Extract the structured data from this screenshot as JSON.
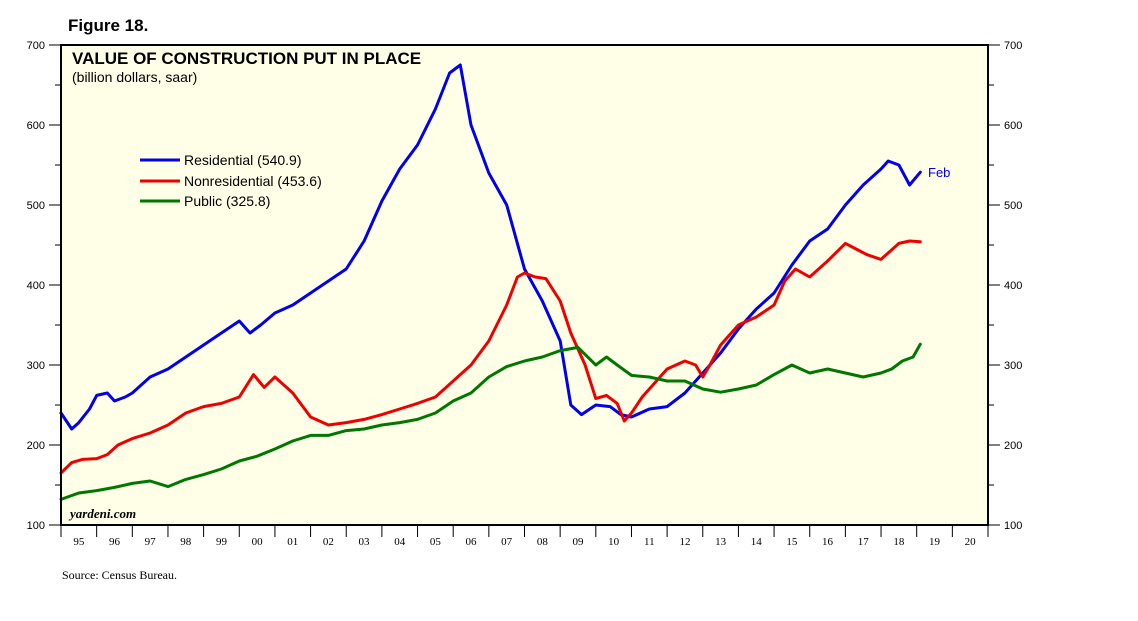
{
  "figure_label": "Figure 18.",
  "source": "Source: Census Bureau.",
  "brand": "yardeni.com",
  "chart_data": {
    "type": "line",
    "title": "VALUE OF CONSTRUCTION PUT IN PLACE",
    "subtitle": "(billion dollars, saar)",
    "ylim": [
      100,
      700
    ],
    "yticks": [
      100,
      200,
      300,
      400,
      500,
      600,
      700
    ],
    "ytick_labels": [
      "100",
      "200",
      "300",
      "400",
      "500",
      "600",
      "700"
    ],
    "xlim": [
      1995,
      2021
    ],
    "xtick_labels": [
      "95",
      "96",
      "97",
      "98",
      "99",
      "00",
      "01",
      "02",
      "03",
      "04",
      "05",
      "06",
      "07",
      "08",
      "09",
      "10",
      "11",
      "12",
      "13",
      "14",
      "15",
      "16",
      "17",
      "18",
      "19",
      "20"
    ],
    "latest_label": "Feb",
    "latest_color": "#0000ee",
    "series": [
      {
        "name": "Residential",
        "legend": "Residential (540.9)",
        "color": "#0000ee",
        "x": [
          1995.0,
          1995.3,
          1995.5,
          1995.8,
          1996.0,
          1996.3,
          1996.5,
          1996.8,
          1997.0,
          1997.5,
          1998.0,
          1998.5,
          1999.0,
          1999.5,
          2000.0,
          2000.3,
          2000.6,
          2001.0,
          2001.5,
          2002.0,
          2002.5,
          2003.0,
          2003.5,
          2004.0,
          2004.5,
          2005.0,
          2005.5,
          2005.9,
          2006.2,
          2006.5,
          2007.0,
          2007.5,
          2008.0,
          2008.5,
          2009.0,
          2009.3,
          2009.6,
          2010.0,
          2010.4,
          2010.7,
          2011.0,
          2011.5,
          2012.0,
          2012.5,
          2013.0,
          2013.5,
          2014.0,
          2014.5,
          2015.0,
          2015.5,
          2016.0,
          2016.5,
          2017.0,
          2017.5,
          2018.0,
          2018.2,
          2018.5,
          2018.8,
          2019.1
        ],
        "y": [
          240,
          220,
          228,
          245,
          262,
          265,
          255,
          260,
          265,
          285,
          295,
          310,
          325,
          340,
          355,
          340,
          350,
          365,
          375,
          390,
          405,
          420,
          455,
          505,
          545,
          575,
          620,
          665,
          675,
          600,
          540,
          500,
          420,
          380,
          330,
          250,
          238,
          250,
          248,
          238,
          235,
          245,
          248,
          265,
          290,
          315,
          345,
          370,
          390,
          425,
          455,
          470,
          500,
          525,
          545,
          555,
          550,
          525,
          541
        ]
      },
      {
        "name": "Nonresidential",
        "legend": "Nonresidential (453.6)",
        "color": "#ee0000",
        "x": [
          1995.0,
          1995.3,
          1995.6,
          1996.0,
          1996.3,
          1996.6,
          1997.0,
          1997.5,
          1998.0,
          1998.5,
          1999.0,
          1999.5,
          2000.0,
          2000.4,
          2000.7,
          2001.0,
          2001.5,
          2002.0,
          2002.5,
          2003.0,
          2003.5,
          2004.0,
          2004.5,
          2005.0,
          2005.5,
          2006.0,
          2006.5,
          2007.0,
          2007.5,
          2007.8,
          2008.0,
          2008.3,
          2008.6,
          2009.0,
          2009.3,
          2009.7,
          2010.0,
          2010.3,
          2010.6,
          2010.8,
          2011.0,
          2011.3,
          2011.6,
          2012.0,
          2012.5,
          2012.8,
          2013.0,
          2013.2,
          2013.5,
          2014.0,
          2014.5,
          2015.0,
          2015.3,
          2015.6,
          2016.0,
          2016.5,
          2017.0,
          2017.3,
          2017.6,
          2018.0,
          2018.5,
          2018.8,
          2019.1
        ],
        "y": [
          165,
          178,
          182,
          183,
          188,
          200,
          208,
          215,
          225,
          240,
          248,
          252,
          260,
          288,
          272,
          285,
          265,
          235,
          225,
          228,
          232,
          238,
          245,
          252,
          260,
          280,
          300,
          330,
          375,
          410,
          415,
          410,
          408,
          380,
          340,
          300,
          258,
          262,
          252,
          230,
          240,
          260,
          275,
          295,
          305,
          300,
          285,
          300,
          325,
          350,
          360,
          375,
          405,
          420,
          410,
          430,
          452,
          445,
          438,
          432,
          452,
          455,
          454
        ]
      },
      {
        "name": "Public",
        "legend": "Public (325.8)",
        "color": "#007700",
        "x": [
          1995.0,
          1995.5,
          1996.0,
          1996.5,
          1997.0,
          1997.5,
          1998.0,
          1998.5,
          1999.0,
          1999.5,
          2000.0,
          2000.5,
          2001.0,
          2001.5,
          2002.0,
          2002.5,
          2003.0,
          2003.5,
          2004.0,
          2004.5,
          2005.0,
          2005.5,
          2006.0,
          2006.5,
          2007.0,
          2007.5,
          2008.0,
          2008.5,
          2009.0,
          2009.5,
          2010.0,
          2010.3,
          2010.6,
          2011.0,
          2011.5,
          2012.0,
          2012.5,
          2013.0,
          2013.5,
          2014.0,
          2014.5,
          2015.0,
          2015.5,
          2016.0,
          2016.5,
          2017.0,
          2017.5,
          2018.0,
          2018.3,
          2018.6,
          2018.9,
          2019.1
        ],
        "y": [
          132,
          140,
          143,
          147,
          152,
          155,
          148,
          157,
          163,
          170,
          180,
          186,
          195,
          205,
          212,
          212,
          218,
          220,
          225,
          228,
          232,
          240,
          255,
          265,
          285,
          298,
          305,
          310,
          318,
          322,
          300,
          310,
          300,
          287,
          285,
          280,
          280,
          270,
          266,
          270,
          275,
          288,
          300,
          290,
          295,
          290,
          285,
          290,
          295,
          305,
          310,
          326
        ]
      }
    ]
  }
}
